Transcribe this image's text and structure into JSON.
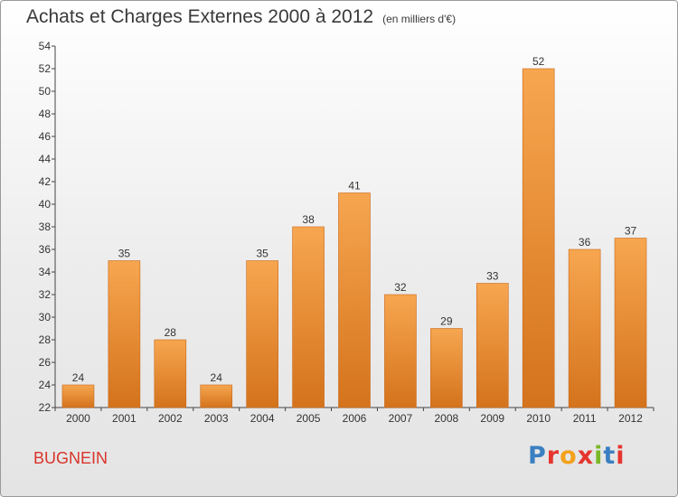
{
  "header": {
    "title": "Achats et Charges Externes 2000 à 2012",
    "unit": "(en milliers d'€)"
  },
  "footer": {
    "commune": "BUGNEIN",
    "logo_text": "Proxiti",
    "logo_colors": [
      "#3a7fc1",
      "#e5352f",
      "#f4a11b",
      "#e5352f",
      "#79b828",
      "#3a7fc1",
      "#e5352f"
    ]
  },
  "colors": {
    "bar_light": "#f7a650",
    "bar_dark": "#d4731c",
    "axis": "#444444",
    "text": "#333333"
  },
  "chart_data": {
    "type": "bar",
    "title": "Achats et Charges Externes 2000 à 2012",
    "categories": [
      "2000",
      "2001",
      "2002",
      "2003",
      "2004",
      "2005",
      "2006",
      "2007",
      "2008",
      "2009",
      "2010",
      "2011",
      "2012"
    ],
    "values": [
      24,
      35,
      28,
      24,
      35,
      38,
      41,
      32,
      29,
      33,
      52,
      36,
      37
    ],
    "ylim": [
      22,
      54
    ],
    "yticks": [
      22,
      24,
      26,
      28,
      30,
      32,
      34,
      36,
      38,
      40,
      42,
      44,
      46,
      48,
      50,
      52,
      54
    ],
    "grid": false,
    "data_labels": true
  }
}
